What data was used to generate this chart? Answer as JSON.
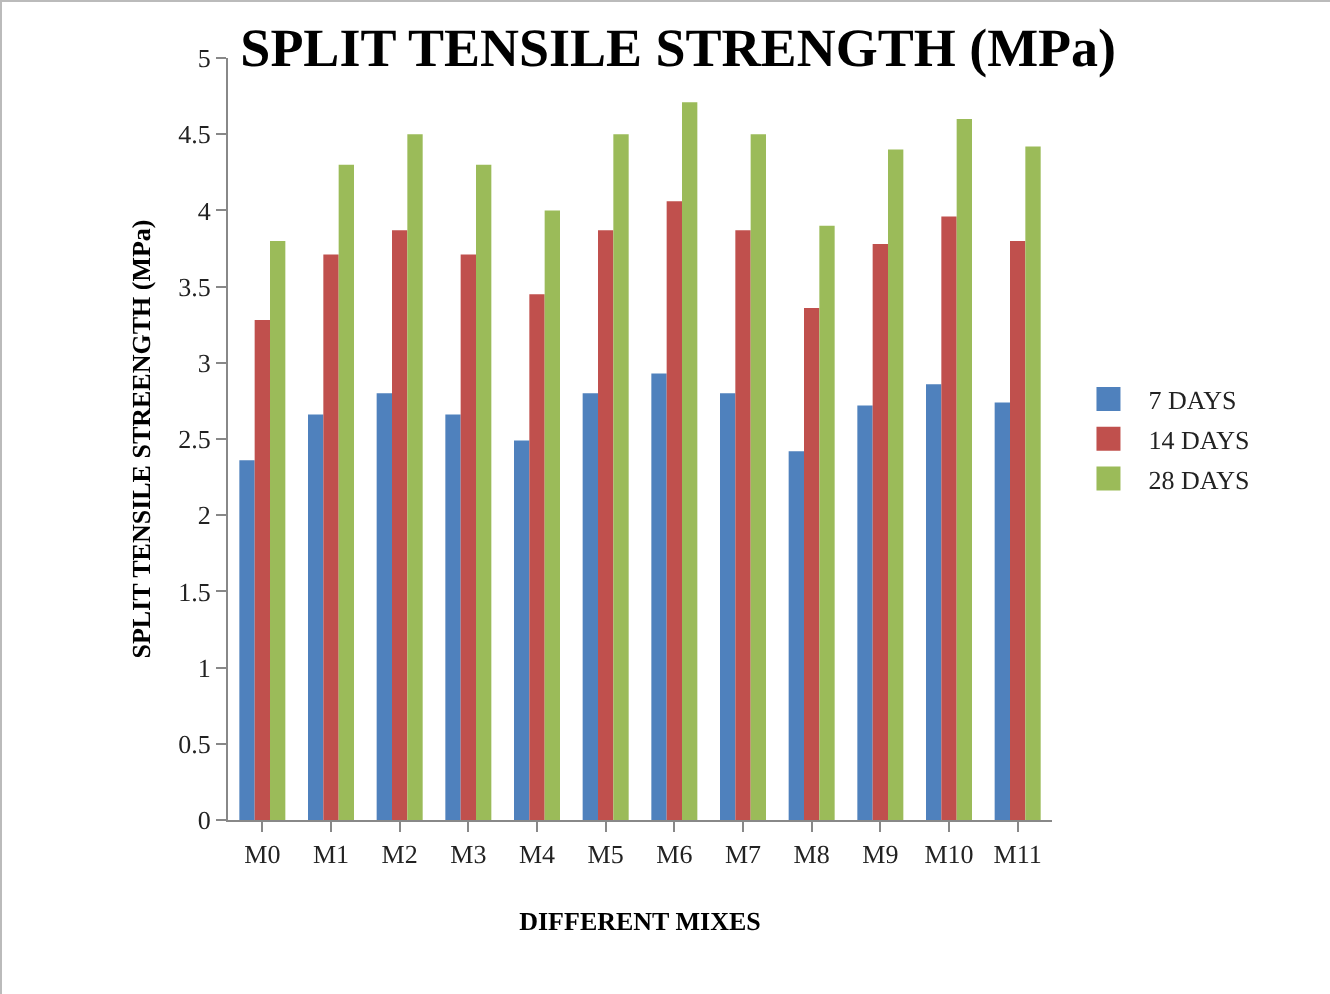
{
  "chart_data": {
    "type": "bar",
    "title": "SPLIT TENSILE STRENGTH (MPa)",
    "xlabel": "DIFFERENT MIXES",
    "ylabel": "SPLIT TENSILE STREENGTH (MPa)",
    "categories": [
      "M0",
      "M1",
      "M2",
      "M3",
      "M4",
      "M5",
      "M6",
      "M7",
      "M8",
      "M9",
      "M10",
      "M11"
    ],
    "series": [
      {
        "name": "7 DAYS",
        "color": "#4f81bd",
        "values": [
          2.36,
          2.66,
          2.8,
          2.66,
          2.49,
          2.8,
          2.93,
          2.8,
          2.42,
          2.72,
          2.86,
          2.74
        ]
      },
      {
        "name": "14 DAYS",
        "color": "#c0504d",
        "values": [
          3.28,
          3.71,
          3.87,
          3.71,
          3.45,
          3.87,
          4.06,
          3.87,
          3.36,
          3.78,
          3.96,
          3.8
        ]
      },
      {
        "name": "28 DAYS",
        "color": "#9bbb59",
        "values": [
          3.8,
          4.3,
          4.5,
          4.3,
          4.0,
          4.5,
          4.71,
          4.5,
          3.9,
          4.4,
          4.6,
          4.42
        ]
      }
    ],
    "ylim": [
      0,
      5
    ],
    "yticks": [
      0,
      0.5,
      1,
      1.5,
      2,
      2.5,
      3,
      3.5,
      4,
      4.5,
      5
    ],
    "grid": false,
    "legend": "right"
  }
}
